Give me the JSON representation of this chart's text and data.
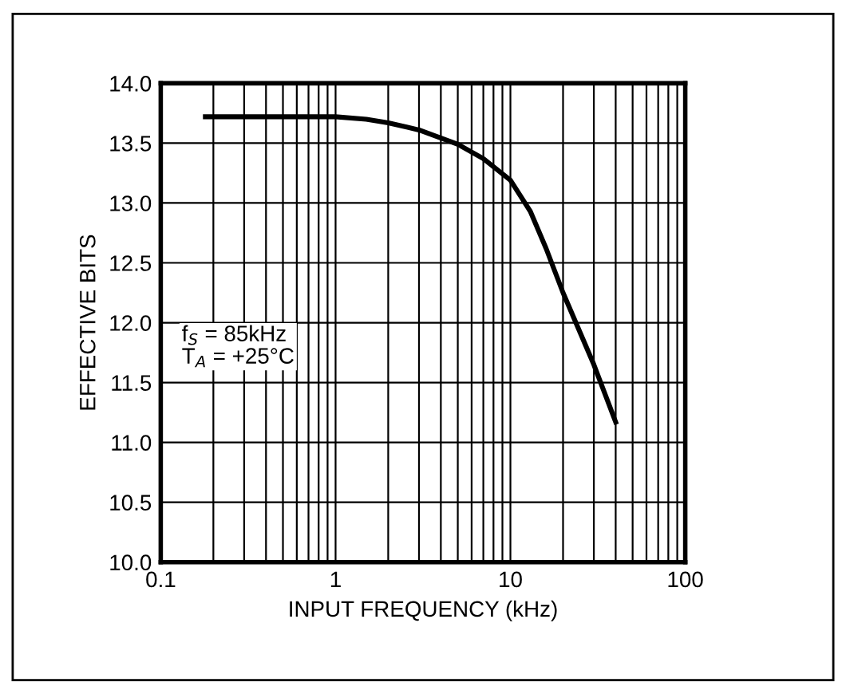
{
  "chart_data": {
    "type": "line",
    "xlabel": "INPUT FREQUENCY (kHz)",
    "ylabel": "EFFECTIVE BITS",
    "log": "x",
    "grid": true,
    "marker": "none",
    "line_style": "solid",
    "x": [
      0.18,
      1,
      1.5,
      2,
      3,
      5,
      7,
      10,
      13,
      16,
      20,
      30,
      40
    ],
    "series": [
      {
        "color": "#000000",
        "values": [
          13.72,
          13.72,
          13.7,
          13.67,
          13.61,
          13.49,
          13.37,
          13.19,
          12.93,
          12.62,
          12.25,
          11.65,
          11.17
        ]
      }
    ],
    "xlim": [
      0.1,
      100
    ],
    "xticks": [
      0.1,
      1,
      10,
      100
    ],
    "ylim": [
      10,
      14
    ],
    "yticks": [
      {
        "value": 10,
        "label": "10.0"
      },
      {
        "value": 10.5,
        "label": "10.5"
      },
      {
        "value": 11,
        "label": "11.0"
      },
      {
        "value": 11.5,
        "label": "11.5"
      },
      {
        "value": 12,
        "label": "12.0"
      },
      {
        "value": 12.5,
        "label": "12.5"
      },
      {
        "value": 13,
        "label": "13.0"
      },
      {
        "value": 13.5,
        "label": "13.5"
      },
      {
        "value": 14,
        "label": "14.0"
      }
    ],
    "annotations": [
      "f$_{S}$ = 85kHz\nT$_{A}$ = +25°C"
    ]
  }
}
